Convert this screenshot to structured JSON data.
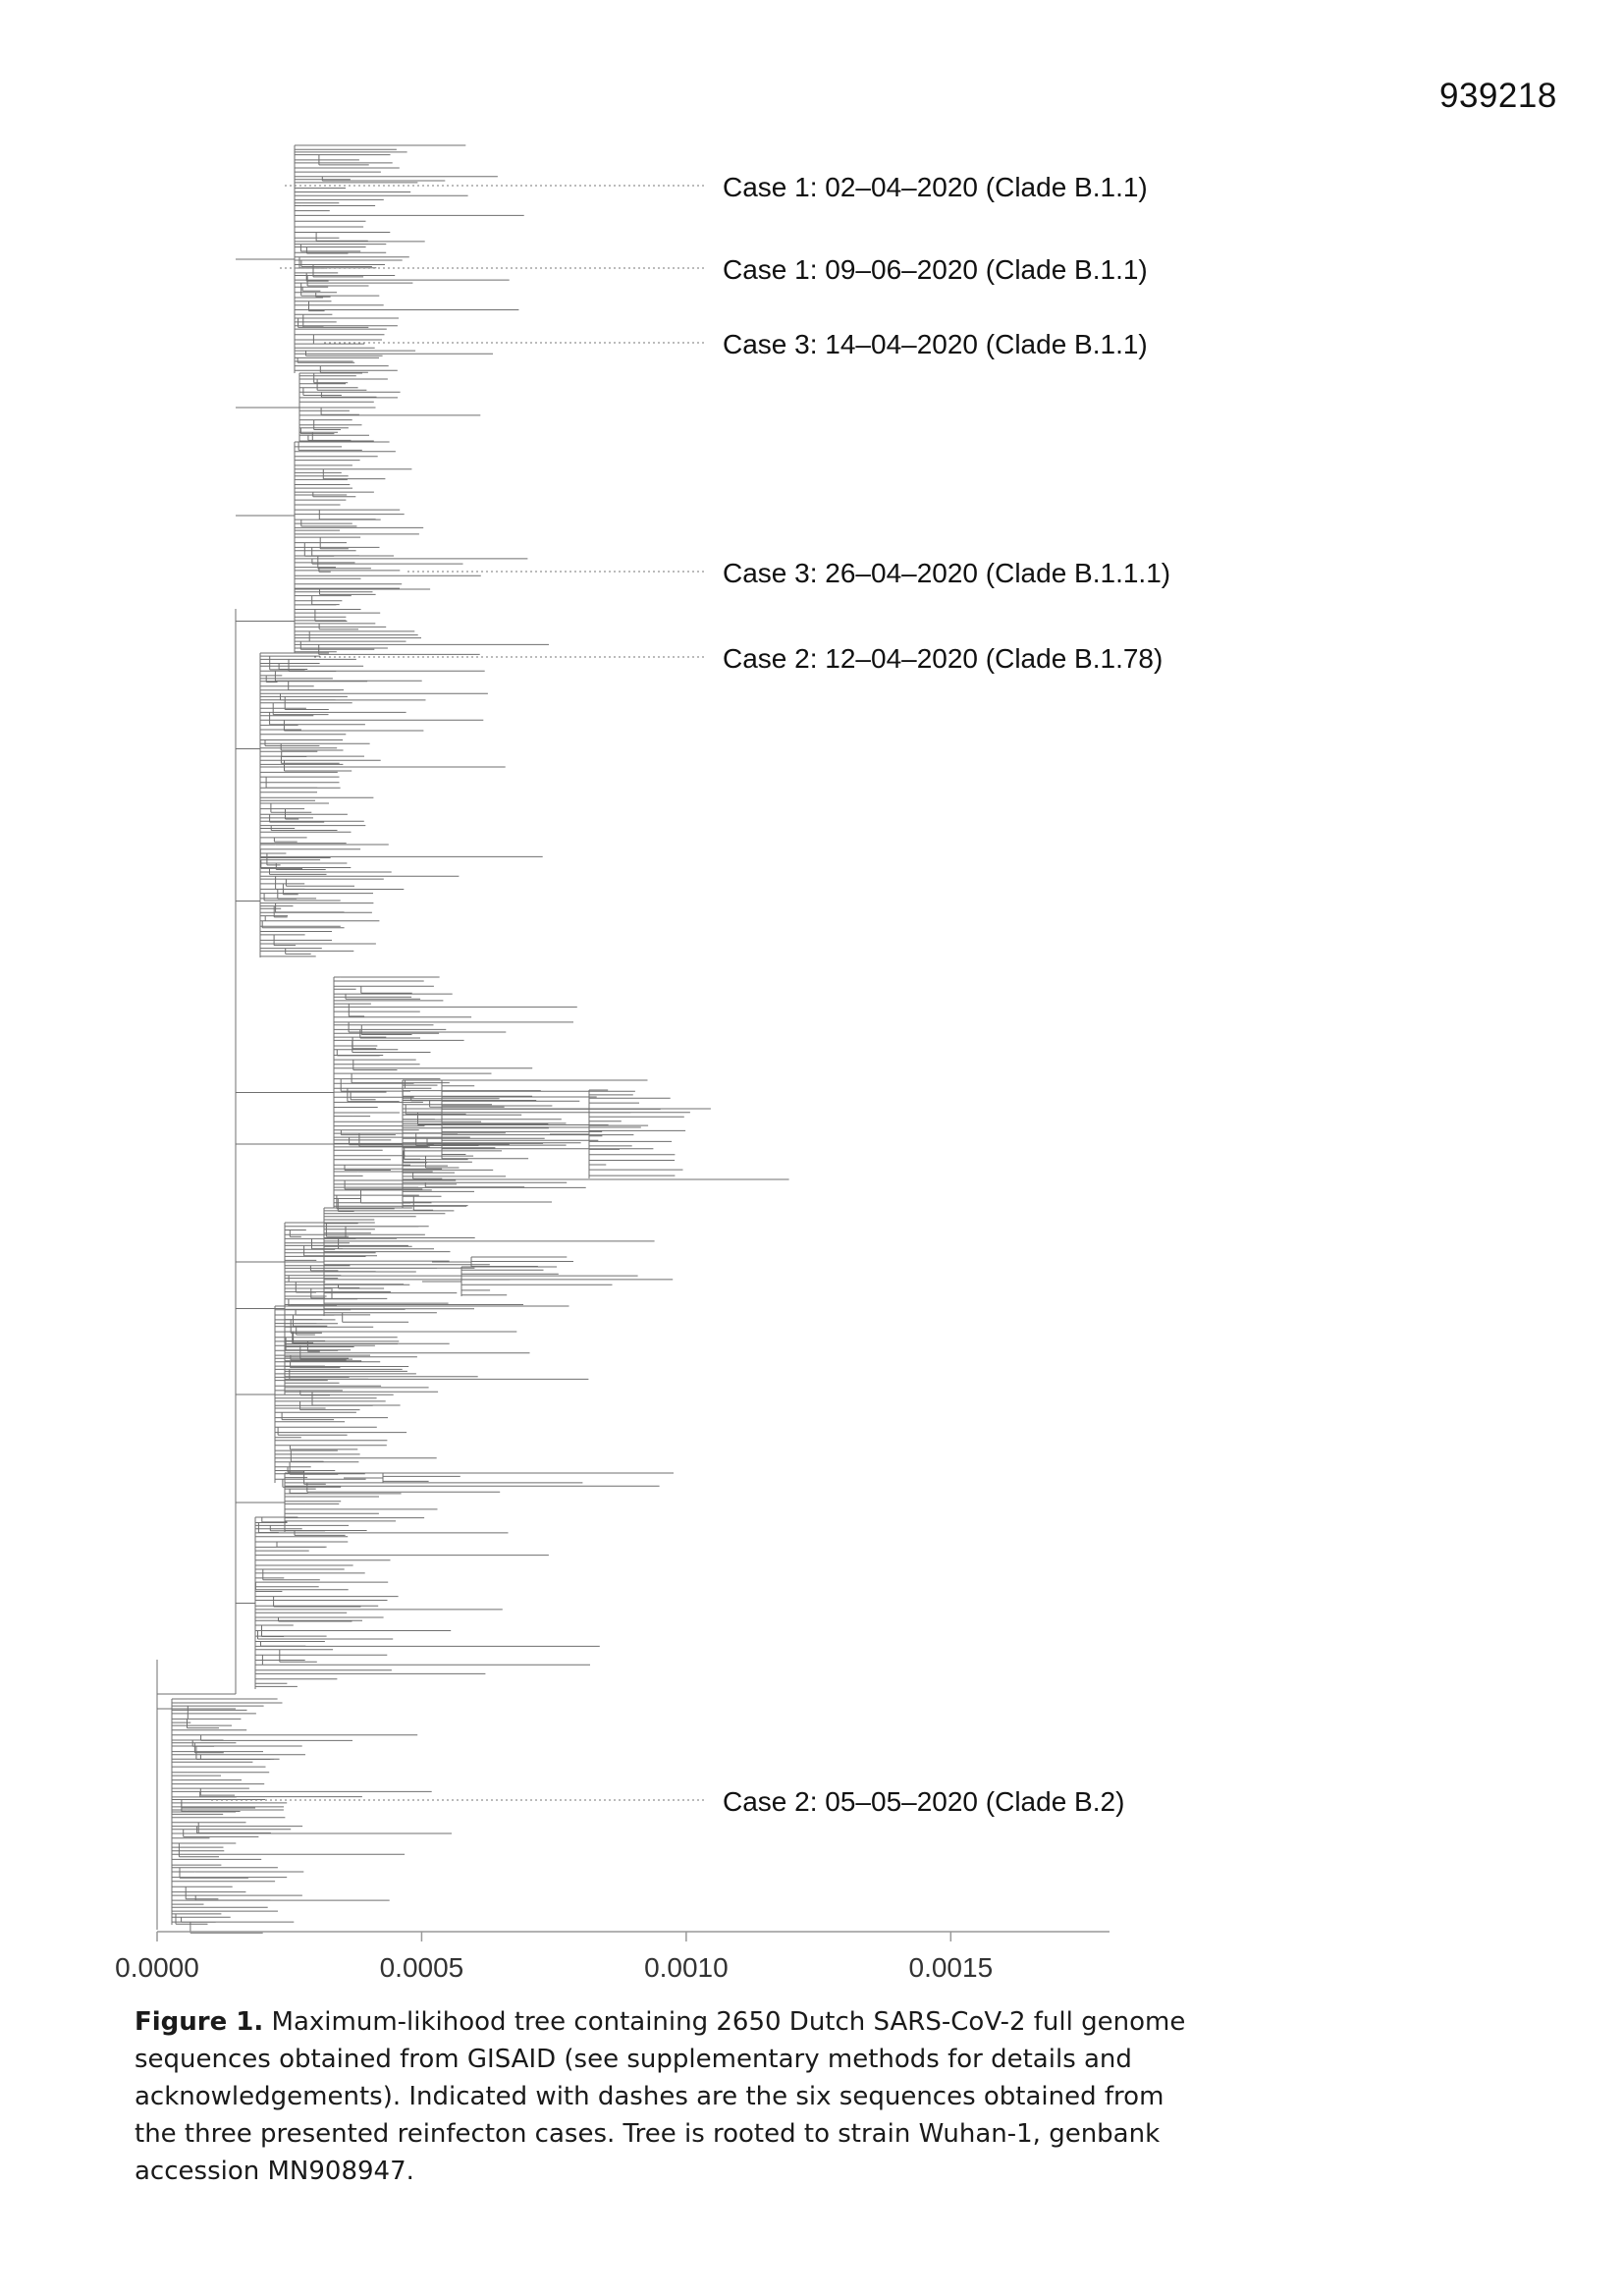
{
  "page_number": "939218",
  "figure": {
    "case_labels": [
      {
        "text": "Case 1: 02–04–2020 (Clade B.1.1)"
      },
      {
        "text": "Case 1: 09–06–2020 (Clade B.1.1)"
      },
      {
        "text": "Case 3: 14–04–2020 (Clade B.1.1)"
      },
      {
        "text": "Case 3: 26–04–2020 (Clade B.1.1.1)"
      },
      {
        "text": "Case 2: 12–04–2020 (Clade B.1.78)"
      },
      {
        "text": "Case 2: 05–05–2020 (Clade B.2)"
      }
    ],
    "axis": {
      "ticks": [
        "0.0000",
        "0.0005",
        "0.0010",
        "0.0015"
      ],
      "tick_values": [
        0,
        0.0005,
        0.001,
        0.0015
      ],
      "range": [
        0,
        0.0018
      ]
    }
  },
  "caption": {
    "label": "Figure 1.",
    "text": " Maximum-likihood tree containing 2650 Dutch SARS-CoV-2 full genome sequences obtained from GISAID (see supplementary methods for details and acknowledgements). Indicated with dashes are the six sequences obtained from the three presented reinfecton cases. Tree is rooted to strain Wuhan-1, genbank accession MN908947."
  }
}
